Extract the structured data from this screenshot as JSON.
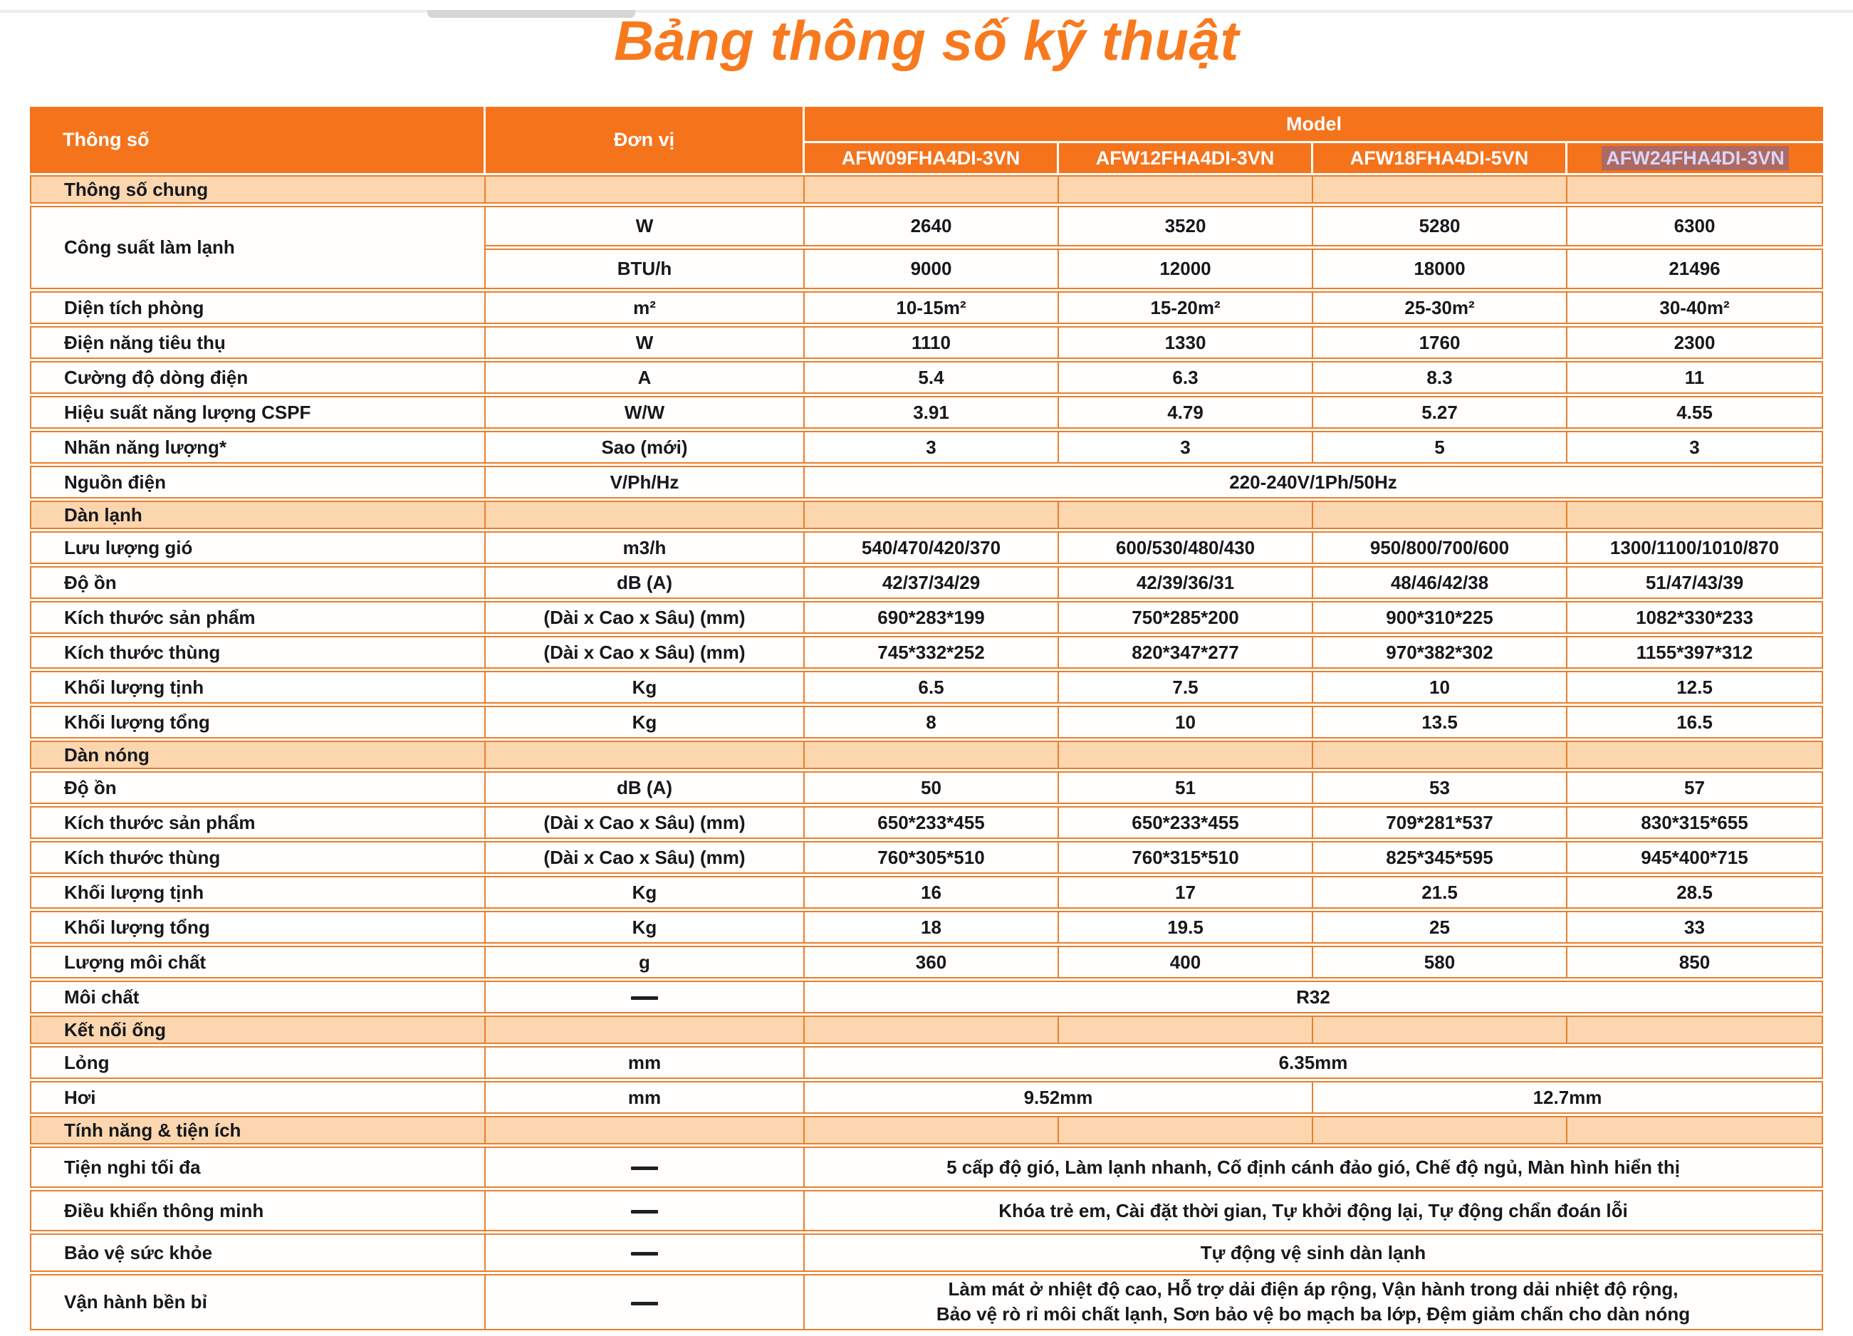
{
  "page": {
    "title": "Bảng thông số kỹ thuật"
  },
  "colors": {
    "title_orange": "#F8791E",
    "header_orange": "#F5731B",
    "section_peach": "#FBD6AF",
    "border_orange": "#E97F2D",
    "selection_text": "#D8D6F7"
  },
  "table": {
    "header": {
      "param": "Thông số",
      "unit": "Đơn vị",
      "model_group": "Model",
      "models": [
        "AFW09FHA4DI-3VN",
        "AFW12FHA4DI-3VN",
        "AFW18FHA4DI-5VN",
        "AFW24FHA4DI-3VN"
      ]
    },
    "rows": [
      {
        "kind": "section",
        "label": "Thông số chung"
      },
      {
        "kind": "row",
        "h": 57,
        "label": "Công suất làm lạnh",
        "rowspan": 2,
        "unit": "W",
        "values": [
          {
            "v": "2640"
          },
          {
            "v": "3520"
          },
          {
            "v": "5280"
          },
          {
            "v": "6300"
          }
        ]
      },
      {
        "kind": "row",
        "h": 57,
        "unit": "BTU/h",
        "values": [
          {
            "v": "9000"
          },
          {
            "v": "12000"
          },
          {
            "v": "18000"
          },
          {
            "v": "21496"
          }
        ]
      },
      {
        "kind": "row",
        "label": "Diện tích phòng",
        "unit": "m²",
        "values": [
          {
            "v": "10-15m²"
          },
          {
            "v": "15-20m²"
          },
          {
            "v": "25-30m²"
          },
          {
            "v": "30-40m²"
          }
        ]
      },
      {
        "kind": "row",
        "label": "Điện năng tiêu thụ",
        "unit": "W",
        "values": [
          {
            "v": "1110"
          },
          {
            "v": "1330"
          },
          {
            "v": "1760"
          },
          {
            "v": "2300"
          }
        ]
      },
      {
        "kind": "row",
        "label": "Cường độ dòng điện",
        "unit": "A",
        "values": [
          {
            "v": "5.4"
          },
          {
            "v": "6.3"
          },
          {
            "v": "8.3"
          },
          {
            "v": "11"
          }
        ]
      },
      {
        "kind": "row",
        "label": "Hiệu suất năng lượng CSPF",
        "unit": "W/W",
        "values": [
          {
            "v": "3.91"
          },
          {
            "v": "4.79"
          },
          {
            "v": "5.27"
          },
          {
            "v": "4.55"
          }
        ]
      },
      {
        "kind": "row",
        "label": "Nhãn năng lượng*",
        "unit": "Sao (mới)",
        "values": [
          {
            "v": "3"
          },
          {
            "v": "3"
          },
          {
            "v": "5"
          },
          {
            "v": "3"
          }
        ]
      },
      {
        "kind": "row",
        "label": "Nguồn điện",
        "unit": "V/Ph/Hz",
        "values": [
          {
            "v": "220-240V/1Ph/50Hz",
            "c": 4
          }
        ]
      },
      {
        "kind": "section",
        "label": "Dàn lạnh"
      },
      {
        "kind": "row",
        "label": "Lưu lượng gió",
        "unit": "m3/h",
        "values": [
          {
            "v": "540/470/420/370"
          },
          {
            "v": "600/530/480/430"
          },
          {
            "v": "950/800/700/600"
          },
          {
            "v": "1300/1100/1010/870"
          }
        ]
      },
      {
        "kind": "row",
        "label": "Độ ồn",
        "unit": "dB (A)",
        "values": [
          {
            "v": "42/37/34/29"
          },
          {
            "v": "42/39/36/31"
          },
          {
            "v": "48/46/42/38"
          },
          {
            "v": "51/47/43/39"
          }
        ]
      },
      {
        "kind": "row",
        "label": "Kích thước sản phẩm",
        "unit": "(Dài x Cao x Sâu) (mm)",
        "values": [
          {
            "v": "690*283*199"
          },
          {
            "v": "750*285*200"
          },
          {
            "v": "900*310*225"
          },
          {
            "v": "1082*330*233"
          }
        ]
      },
      {
        "kind": "row",
        "label": "Kích thước thùng",
        "unit": "(Dài x Cao x Sâu) (mm)",
        "values": [
          {
            "v": "745*332*252"
          },
          {
            "v": "820*347*277"
          },
          {
            "v": "970*382*302"
          },
          {
            "v": "1155*397*312"
          }
        ]
      },
      {
        "kind": "row",
        "label": "Khối lượng tịnh",
        "unit": "Kg",
        "values": [
          {
            "v": "6.5"
          },
          {
            "v": "7.5"
          },
          {
            "v": "10"
          },
          {
            "v": "12.5"
          }
        ]
      },
      {
        "kind": "row",
        "label": "Khối lượng tổng",
        "unit": "Kg",
        "values": [
          {
            "v": "8"
          },
          {
            "v": "10"
          },
          {
            "v": "13.5"
          },
          {
            "v": "16.5"
          }
        ]
      },
      {
        "kind": "section",
        "label": "Dàn nóng"
      },
      {
        "kind": "row",
        "label": "Độ ồn",
        "unit": "dB (A)",
        "values": [
          {
            "v": "50"
          },
          {
            "v": "51"
          },
          {
            "v": "53"
          },
          {
            "v": "57"
          }
        ]
      },
      {
        "kind": "row",
        "label": "Kích thước sản phẩm",
        "unit": "(Dài x Cao x Sâu) (mm)",
        "values": [
          {
            "v": "650*233*455"
          },
          {
            "v": "650*233*455"
          },
          {
            "v": "709*281*537"
          },
          {
            "v": "830*315*655"
          }
        ]
      },
      {
        "kind": "row",
        "label": "Kích thước thùng",
        "unit": "(Dài x Cao x Sâu) (mm)",
        "values": [
          {
            "v": "760*305*510"
          },
          {
            "v": "760*315*510"
          },
          {
            "v": "825*345*595"
          },
          {
            "v": "945*400*715"
          }
        ]
      },
      {
        "kind": "row",
        "label": "Khối lượng tịnh",
        "unit": "Kg",
        "values": [
          {
            "v": "16"
          },
          {
            "v": "17"
          },
          {
            "v": "21.5"
          },
          {
            "v": "28.5"
          }
        ]
      },
      {
        "kind": "row",
        "label": "Khối lượng tổng",
        "unit": "Kg",
        "values": [
          {
            "v": "18"
          },
          {
            "v": "19.5"
          },
          {
            "v": "25"
          },
          {
            "v": "33"
          }
        ]
      },
      {
        "kind": "row",
        "label": "Lượng môi chất",
        "unit": "g",
        "values": [
          {
            "v": "360"
          },
          {
            "v": "400"
          },
          {
            "v": "580"
          },
          {
            "v": "850"
          }
        ]
      },
      {
        "kind": "row",
        "label": "Môi chất",
        "unit": "—",
        "values": [
          {
            "v": "R32",
            "c": 4
          }
        ]
      },
      {
        "kind": "section",
        "label": "Kết nối ống"
      },
      {
        "kind": "row",
        "label": "Lỏng",
        "unit": "mm",
        "values": [
          {
            "v": "6.35mm",
            "c": 4
          }
        ]
      },
      {
        "kind": "row",
        "label": "Hơi",
        "unit": "mm",
        "values": [
          {
            "v": "9.52mm",
            "c": 2
          },
          {
            "v": "12.7mm",
            "c": 2
          }
        ]
      },
      {
        "kind": "section",
        "label": "Tính năng & tiện ích"
      },
      {
        "kind": "row",
        "h": 58,
        "label": "Tiện nghi tối đa",
        "unit": "—",
        "values": [
          {
            "v": "5 cấp độ gió, Làm lạnh nhanh, Cố định cánh đảo gió, Chế độ ngủ, Màn hình hiển thị",
            "c": 4
          }
        ]
      },
      {
        "kind": "row",
        "h": 58,
        "label": "Điều khiển thông minh",
        "unit": "—",
        "values": [
          {
            "v": "Khóa trẻ em, Cài đặt thời gian, Tự khởi động lại, Tự động chẩn đoán lỗi",
            "c": 4
          }
        ]
      },
      {
        "kind": "row",
        "h": 54,
        "label": "Bảo vệ sức khỏe",
        "unit": "—",
        "values": [
          {
            "v": "Tự động vệ sinh dàn lạnh",
            "c": 4
          }
        ]
      },
      {
        "kind": "row",
        "h": 78,
        "label": "Vận hành bền bỉ",
        "unit": "—",
        "values": [
          {
            "v": "Làm mát ở nhiệt độ cao, Hỗ trợ dải điện áp rộng, Vận hành trong dải nhiệt độ rộng,\nBảo vệ rò rỉ môi chất lạnh, Sơn bảo vệ bo mạch ba lớp, Đệm giảm chấn cho dàn nóng",
            "c": 4
          }
        ]
      }
    ]
  }
}
